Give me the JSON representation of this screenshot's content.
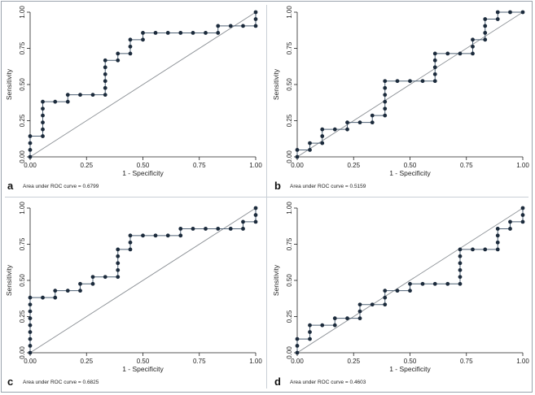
{
  "chart_data": [
    {
      "type": "line",
      "panel_label": "a",
      "xlabel": "1 - Specificity",
      "ylabel": "Sensitivity",
      "xlim": [
        0,
        1
      ],
      "ylim": [
        0,
        1
      ],
      "xticks": [
        "0.00",
        "0.25",
        "0.50",
        "0.75",
        "1.00"
      ],
      "yticks": [
        "0.00",
        "0.25",
        "0.50",
        "0.75",
        "1.00"
      ],
      "auc_text": "Area under ROC curve = 0.6799",
      "reference_line": true,
      "grid": false,
      "points": [
        [
          0,
          0
        ],
        [
          0,
          0.048
        ],
        [
          0,
          0.095
        ],
        [
          0,
          0.143
        ],
        [
          0.056,
          0.143
        ],
        [
          0.056,
          0.19
        ],
        [
          0.056,
          0.238
        ],
        [
          0.056,
          0.286
        ],
        [
          0.056,
          0.333
        ],
        [
          0.056,
          0.381
        ],
        [
          0.111,
          0.381
        ],
        [
          0.167,
          0.381
        ],
        [
          0.167,
          0.429
        ],
        [
          0.222,
          0.429
        ],
        [
          0.278,
          0.429
        ],
        [
          0.333,
          0.429
        ],
        [
          0.333,
          0.476
        ],
        [
          0.333,
          0.524
        ],
        [
          0.333,
          0.571
        ],
        [
          0.333,
          0.619
        ],
        [
          0.333,
          0.667
        ],
        [
          0.389,
          0.667
        ],
        [
          0.389,
          0.714
        ],
        [
          0.444,
          0.714
        ],
        [
          0.444,
          0.762
        ],
        [
          0.444,
          0.81
        ],
        [
          0.5,
          0.81
        ],
        [
          0.5,
          0.857
        ],
        [
          0.556,
          0.857
        ],
        [
          0.611,
          0.857
        ],
        [
          0.667,
          0.857
        ],
        [
          0.722,
          0.857
        ],
        [
          0.778,
          0.857
        ],
        [
          0.833,
          0.857
        ],
        [
          0.833,
          0.905
        ],
        [
          0.889,
          0.905
        ],
        [
          0.944,
          0.905
        ],
        [
          1,
          0.905
        ],
        [
          1,
          0.952
        ],
        [
          1,
          1
        ]
      ]
    },
    {
      "type": "line",
      "panel_label": "b",
      "xlabel": "1 - Specificity",
      "ylabel": "Sensitivity",
      "xlim": [
        0,
        1
      ],
      "ylim": [
        0,
        1
      ],
      "xticks": [
        "0.00",
        "0.25",
        "0.50",
        "0.75",
        "1.00"
      ],
      "yticks": [
        "0.00",
        "0.25",
        "0.50",
        "0.75",
        "1.00"
      ],
      "auc_text": "Area under ROC curve = 0.5159",
      "reference_line": true,
      "grid": false,
      "points": [
        [
          0,
          0
        ],
        [
          0,
          0.048
        ],
        [
          0.056,
          0.048
        ],
        [
          0.056,
          0.095
        ],
        [
          0.111,
          0.095
        ],
        [
          0.111,
          0.143
        ],
        [
          0.111,
          0.19
        ],
        [
          0.167,
          0.19
        ],
        [
          0.222,
          0.19
        ],
        [
          0.222,
          0.238
        ],
        [
          0.278,
          0.238
        ],
        [
          0.333,
          0.238
        ],
        [
          0.333,
          0.286
        ],
        [
          0.389,
          0.286
        ],
        [
          0.389,
          0.333
        ],
        [
          0.389,
          0.381
        ],
        [
          0.389,
          0.429
        ],
        [
          0.389,
          0.476
        ],
        [
          0.389,
          0.524
        ],
        [
          0.444,
          0.524
        ],
        [
          0.5,
          0.524
        ],
        [
          0.556,
          0.524
        ],
        [
          0.611,
          0.524
        ],
        [
          0.611,
          0.571
        ],
        [
          0.611,
          0.619
        ],
        [
          0.611,
          0.667
        ],
        [
          0.611,
          0.714
        ],
        [
          0.667,
          0.714
        ],
        [
          0.722,
          0.714
        ],
        [
          0.778,
          0.714
        ],
        [
          0.778,
          0.762
        ],
        [
          0.778,
          0.81
        ],
        [
          0.833,
          0.81
        ],
        [
          0.833,
          0.857
        ],
        [
          0.833,
          0.905
        ],
        [
          0.833,
          0.952
        ],
        [
          0.889,
          0.952
        ],
        [
          0.889,
          1
        ],
        [
          0.944,
          1
        ],
        [
          1,
          1
        ]
      ]
    },
    {
      "type": "line",
      "panel_label": "c",
      "xlabel": "1 - Specificity",
      "ylabel": "Sensitivity",
      "xlim": [
        0,
        1
      ],
      "ylim": [
        0,
        1
      ],
      "xticks": [
        "0.00",
        "0.25",
        "0.50",
        "0.75",
        "1.00"
      ],
      "yticks": [
        "0.00",
        "0.25",
        "0.50",
        "0.75",
        "1.00"
      ],
      "auc_text": "Area under ROC curve = 0.6825",
      "reference_line": true,
      "grid": false,
      "points": [
        [
          0,
          0
        ],
        [
          0,
          0.048
        ],
        [
          0,
          0.095
        ],
        [
          0,
          0.143
        ],
        [
          0,
          0.19
        ],
        [
          0,
          0.238
        ],
        [
          0,
          0.286
        ],
        [
          0,
          0.333
        ],
        [
          0,
          0.381
        ],
        [
          0.056,
          0.381
        ],
        [
          0.111,
          0.381
        ],
        [
          0.111,
          0.429
        ],
        [
          0.167,
          0.429
        ],
        [
          0.222,
          0.429
        ],
        [
          0.222,
          0.476
        ],
        [
          0.278,
          0.476
        ],
        [
          0.278,
          0.524
        ],
        [
          0.333,
          0.524
        ],
        [
          0.389,
          0.524
        ],
        [
          0.389,
          0.571
        ],
        [
          0.389,
          0.619
        ],
        [
          0.389,
          0.667
        ],
        [
          0.389,
          0.714
        ],
        [
          0.444,
          0.714
        ],
        [
          0.444,
          0.762
        ],
        [
          0.444,
          0.81
        ],
        [
          0.5,
          0.81
        ],
        [
          0.556,
          0.81
        ],
        [
          0.611,
          0.81
        ],
        [
          0.667,
          0.81
        ],
        [
          0.667,
          0.857
        ],
        [
          0.722,
          0.857
        ],
        [
          0.778,
          0.857
        ],
        [
          0.833,
          0.857
        ],
        [
          0.889,
          0.857
        ],
        [
          0.944,
          0.857
        ],
        [
          0.944,
          0.905
        ],
        [
          1,
          0.905
        ],
        [
          1,
          0.952
        ],
        [
          1,
          1
        ]
      ]
    },
    {
      "type": "line",
      "panel_label": "d",
      "xlabel": "1 - Specificity",
      "ylabel": "Sensitivity",
      "xlim": [
        0,
        1
      ],
      "ylim": [
        0,
        1
      ],
      "xticks": [
        "0.00",
        "0.25",
        "0.50",
        "0.75",
        "1.00"
      ],
      "yticks": [
        "0.00",
        "0.25",
        "0.50",
        "0.75",
        "1.00"
      ],
      "auc_text": "Area under ROC curve = 0.4603",
      "reference_line": true,
      "grid": false,
      "points": [
        [
          0,
          0
        ],
        [
          0,
          0.048
        ],
        [
          0,
          0.095
        ],
        [
          0.056,
          0.095
        ],
        [
          0.056,
          0.143
        ],
        [
          0.056,
          0.19
        ],
        [
          0.111,
          0.19
        ],
        [
          0.167,
          0.19
        ],
        [
          0.167,
          0.238
        ],
        [
          0.222,
          0.238
        ],
        [
          0.278,
          0.238
        ],
        [
          0.278,
          0.286
        ],
        [
          0.278,
          0.333
        ],
        [
          0.333,
          0.333
        ],
        [
          0.389,
          0.333
        ],
        [
          0.389,
          0.381
        ],
        [
          0.389,
          0.429
        ],
        [
          0.444,
          0.429
        ],
        [
          0.5,
          0.429
        ],
        [
          0.5,
          0.476
        ],
        [
          0.556,
          0.476
        ],
        [
          0.611,
          0.476
        ],
        [
          0.667,
          0.476
        ],
        [
          0.722,
          0.476
        ],
        [
          0.722,
          0.524
        ],
        [
          0.722,
          0.571
        ],
        [
          0.722,
          0.619
        ],
        [
          0.722,
          0.667
        ],
        [
          0.722,
          0.714
        ],
        [
          0.778,
          0.714
        ],
        [
          0.833,
          0.714
        ],
        [
          0.889,
          0.714
        ],
        [
          0.889,
          0.762
        ],
        [
          0.889,
          0.81
        ],
        [
          0.889,
          0.857
        ],
        [
          0.944,
          0.857
        ],
        [
          0.944,
          0.905
        ],
        [
          1,
          0.905
        ],
        [
          1,
          0.952
        ],
        [
          1,
          1
        ]
      ]
    }
  ],
  "style": {
    "curve_color": "#4f6275",
    "marker_color": "#1c2b3c",
    "reference_color": "#8a8f94",
    "axis_color": "#222222",
    "frame_color": "#9aa3ad"
  }
}
